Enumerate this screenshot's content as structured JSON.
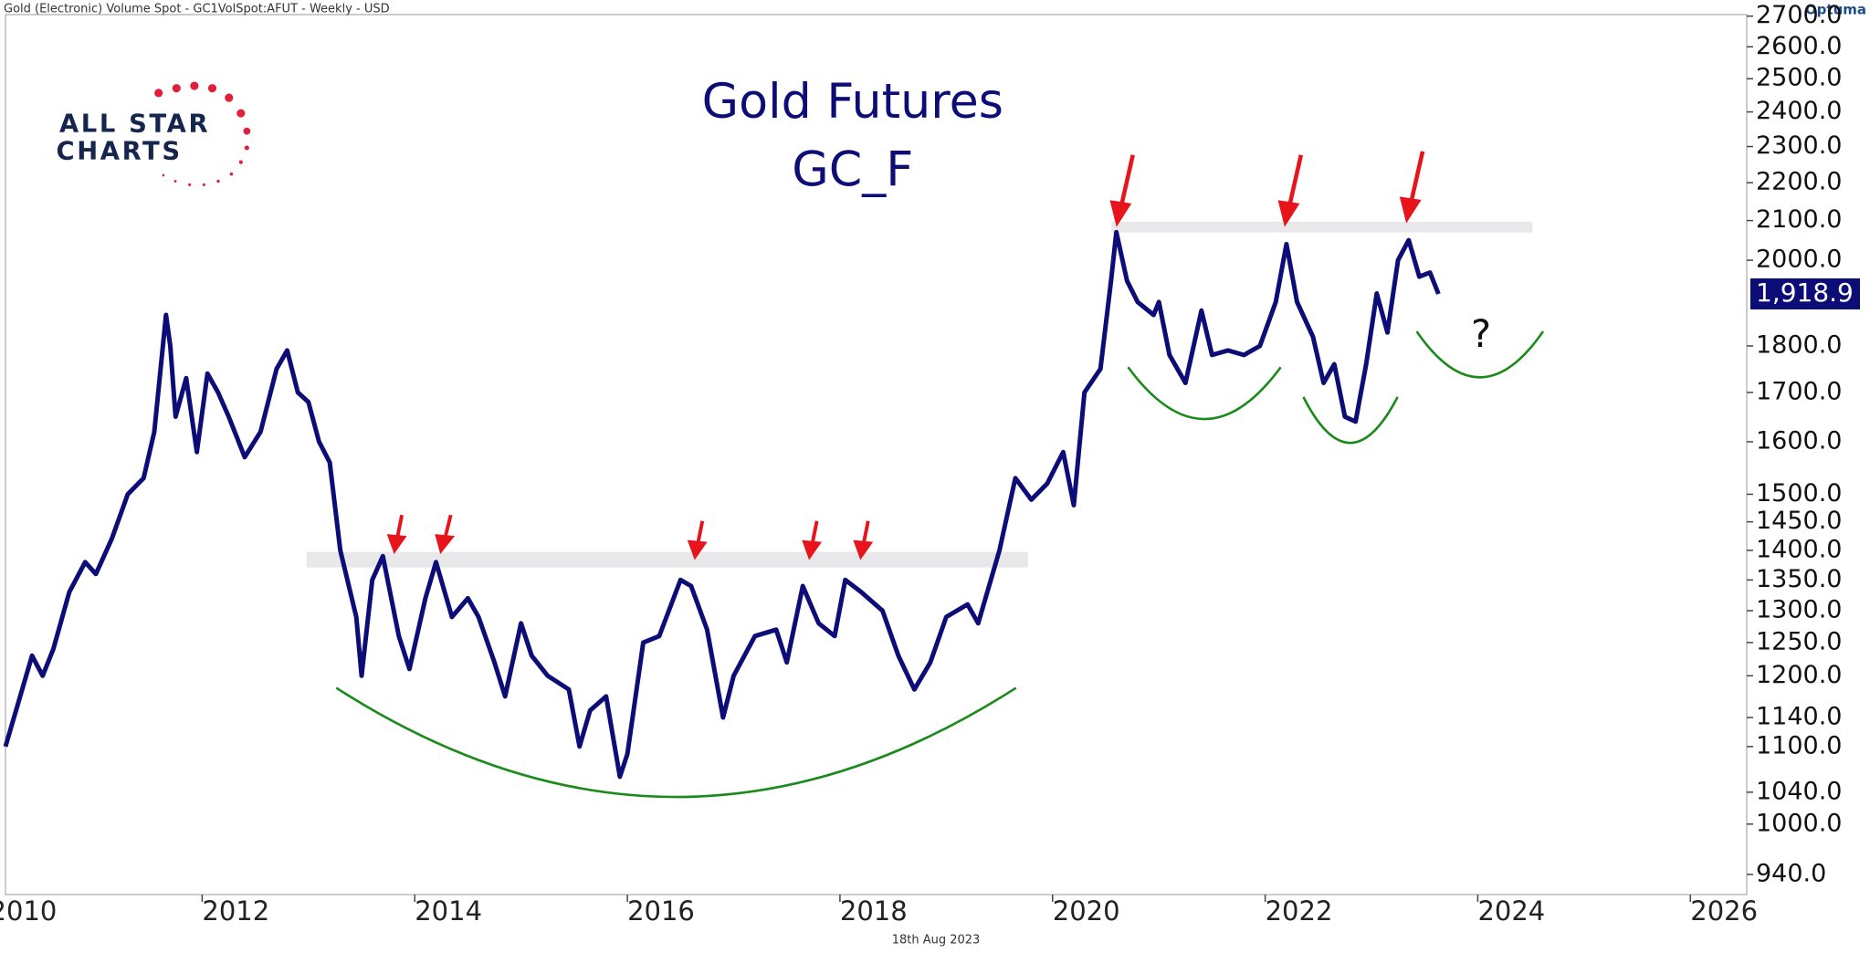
{
  "header": "Gold (Electronic) Volume Spot - GC1VolSpot:AFUT - Weekly - USD",
  "brand": "Optuma",
  "date": "18th Aug 2023",
  "logo": [
    "ALL STAR",
    "CHARTS"
  ],
  "chart_data": {
    "type": "line",
    "title": "Gold Futures",
    "subtitle": "GC_F",
    "annotation": "?",
    "last_label": "1,918.9",
    "log_scale": true,
    "x": [
      2010.15,
      2010.25,
      2010.4,
      2010.5,
      2010.6,
      2010.75,
      2010.9,
      2011.0,
      2011.15,
      2011.3,
      2011.45,
      2011.55,
      2011.66,
      2011.7,
      2011.75,
      2011.85,
      2011.95,
      2012.05,
      2012.15,
      2012.25,
      2012.4,
      2012.55,
      2012.7,
      2012.8,
      2012.9,
      2013.0,
      2013.1,
      2013.2,
      2013.3,
      2013.45,
      2013.5,
      2013.6,
      2013.7,
      2013.85,
      2013.95,
      2014.1,
      2014.2,
      2014.35,
      2014.5,
      2014.6,
      2014.75,
      2014.85,
      2015.0,
      2015.1,
      2015.25,
      2015.45,
      2015.55,
      2015.65,
      2015.8,
      2015.93,
      2016.0,
      2016.15,
      2016.3,
      2016.5,
      2016.6,
      2016.75,
      2016.9,
      2017.0,
      2017.2,
      2017.4,
      2017.5,
      2017.65,
      2017.8,
      2017.95,
      2018.05,
      2018.2,
      2018.4,
      2018.55,
      2018.7,
      2018.85,
      2019.0,
      2019.2,
      2019.3,
      2019.5,
      2019.65,
      2019.8,
      2019.95,
      2020.1,
      2020.2,
      2020.3,
      2020.45,
      2020.55,
      2020.6,
      2020.7,
      2020.8,
      2020.95,
      2021.0,
      2021.1,
      2021.25,
      2021.4,
      2021.5,
      2021.65,
      2021.8,
      2021.95,
      2022.1,
      2022.2,
      2022.3,
      2022.45,
      2022.55,
      2022.65,
      2022.75,
      2022.85,
      2022.95,
      2023.05,
      2023.15,
      2023.25,
      2023.35,
      2023.45,
      2023.55,
      2023.63
    ],
    "series": [
      {
        "name": "GC_F",
        "color": "#0d0d78",
        "values": [
          1100,
          1150,
          1230,
          1200,
          1240,
          1330,
          1380,
          1360,
          1420,
          1500,
          1530,
          1620,
          1870,
          1800,
          1650,
          1730,
          1580,
          1740,
          1700,
          1650,
          1570,
          1620,
          1750,
          1790,
          1700,
          1680,
          1600,
          1560,
          1400,
          1290,
          1200,
          1350,
          1390,
          1260,
          1210,
          1320,
          1380,
          1290,
          1320,
          1290,
          1220,
          1170,
          1280,
          1230,
          1200,
          1180,
          1100,
          1150,
          1170,
          1060,
          1090,
          1250,
          1260,
          1350,
          1340,
          1270,
          1140,
          1200,
          1260,
          1270,
          1220,
          1340,
          1280,
          1260,
          1350,
          1330,
          1300,
          1230,
          1180,
          1220,
          1290,
          1310,
          1280,
          1400,
          1530,
          1490,
          1520,
          1580,
          1480,
          1700,
          1750,
          1950,
          2070,
          1950,
          1900,
          1870,
          1900,
          1780,
          1720,
          1880,
          1780,
          1790,
          1780,
          1800,
          1900,
          2040,
          1900,
          1820,
          1720,
          1760,
          1650,
          1640,
          1760,
          1920,
          1830,
          2000,
          2050,
          1960,
          1970,
          1918.9
        ]
      }
    ],
    "xlim": [
      2010.15,
      2026.53
    ],
    "xticks": [
      2010,
      2012,
      2014,
      2016,
      2018,
      2020,
      2022,
      2024,
      2026
    ],
    "ylim": [
      917,
      2705
    ],
    "yticks": [
      {
        "value": 940,
        "label": "940.0"
      },
      {
        "value": 1000,
        "label": "1000.0"
      },
      {
        "value": 1040,
        "label": "1040.0"
      },
      {
        "value": 1100,
        "label": "1100.0"
      },
      {
        "value": 1140,
        "label": "1140.0"
      },
      {
        "value": 1200,
        "label": "1200.0"
      },
      {
        "value": 1250,
        "label": "1250.0"
      },
      {
        "value": 1300,
        "label": "1300.0"
      },
      {
        "value": 1350,
        "label": "1350.0"
      },
      {
        "value": 1400,
        "label": "1400.0"
      },
      {
        "value": 1450,
        "label": "1450.0"
      },
      {
        "value": 1500,
        "label": "1500.0"
      },
      {
        "value": 1600,
        "label": "1600.0"
      },
      {
        "value": 1700,
        "label": "1700.0"
      },
      {
        "value": 1800,
        "label": "1800.0"
      },
      {
        "value": 2000,
        "label": "2000.0"
      },
      {
        "value": 2100,
        "label": "2100.0"
      },
      {
        "value": 2200,
        "label": "2200.0"
      },
      {
        "value": 2300,
        "label": "2300.0"
      },
      {
        "value": 2400,
        "label": "2400.0"
      },
      {
        "value": 2500,
        "label": "2500.0"
      },
      {
        "value": 2600,
        "label": "2600.0"
      },
      {
        "value": 2700,
        "label": "2700.0"
      }
    ]
  }
}
